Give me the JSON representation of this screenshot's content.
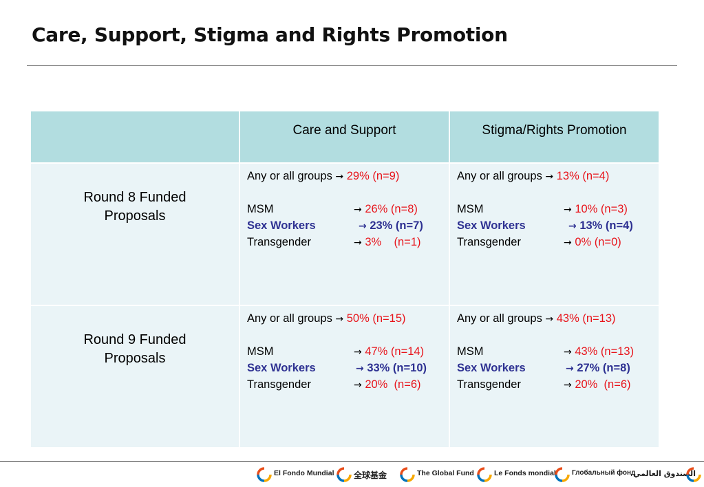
{
  "title": "Care, Support, Stigma and Rights Promotion",
  "table": {
    "headers": [
      "",
      "Care and Support",
      "Stigma/Rights Promotion"
    ],
    "rows": [
      {
        "label_line1": "Round 8 Funded",
        "label_line2": "Proposals",
        "care": {
          "any": {
            "label": "Any or all groups",
            "value": "29% (n=9)"
          },
          "msm": {
            "label": "MSM",
            "value": "26% (n=8)"
          },
          "sw": {
            "label": "Sex Workers",
            "value": "23% (n=7)"
          },
          "tg": {
            "label": "Transgender",
            "value": "3%    (n=1)"
          }
        },
        "stigma": {
          "any": {
            "label": "Any or all groups",
            "value": "13% (n=4)"
          },
          "msm": {
            "label": "MSM",
            "value": "10% (n=3)"
          },
          "sw": {
            "label": "Sex Workers",
            "value": "13% (n=4)"
          },
          "tg": {
            "label": "Transgender",
            "value": "0% (n=0)"
          }
        }
      },
      {
        "label_line1": "Round 9 Funded",
        "label_line2": "Proposals",
        "care": {
          "any": {
            "label": "Any or all groups",
            "value": "50% (n=15)"
          },
          "msm": {
            "label": "MSM",
            "value": "47% (n=14)"
          },
          "sw": {
            "label": "Sex Workers",
            "value": "33% (n=10)"
          },
          "tg": {
            "label": "Transgender",
            "value": "20%  (n=6)"
          }
        },
        "stigma": {
          "any": {
            "label": "Any or all groups",
            "value": "43% (n=13)"
          },
          "msm": {
            "label": "MSM",
            "value": "43% (n=13)"
          },
          "sw": {
            "label": "Sex Workers",
            "value": "27% (n=8)"
          },
          "tg": {
            "label": "Transgender",
            "value": "20%  (n=6)"
          }
        }
      }
    ],
    "arrow": "→"
  },
  "colors": {
    "header_bg": "#b2dde0",
    "cell_bg": "#eaf4f7",
    "value_red": "#e8141b",
    "sex_workers_blue": "#2e3192"
  },
  "footer": {
    "logos": [
      {
        "icon": "global-fund-logo-icon",
        "name": "El Fondo Mundial"
      },
      {
        "icon": "global-fund-logo-icon",
        "name": "全球基金"
      },
      {
        "icon": "global-fund-logo-icon",
        "name": "The Global Fund"
      },
      {
        "icon": "global-fund-logo-icon",
        "name": "Le Fonds mondial"
      },
      {
        "icon": "global-fund-logo-icon",
        "name": "Глобальный фонд"
      },
      {
        "icon": "global-fund-logo-icon",
        "name": "الصندوق العالمي"
      }
    ]
  }
}
